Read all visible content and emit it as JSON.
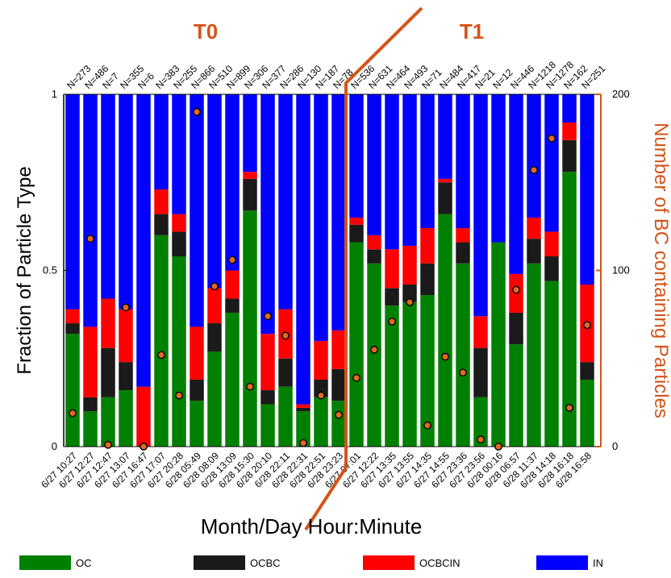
{
  "chart_data": {
    "type": "bar",
    "stacked": true,
    "categories": [
      "6/27 10:27",
      "6/27 12:27",
      "6/27 12:47",
      "6/27 13:07",
      "6/27 16:47",
      "6/27 17:07",
      "6/27 20:28",
      "6/28 05:49",
      "6/28 08:09",
      "6/28 13:09",
      "6/28 15:30",
      "6/28 20:10",
      "6/28 22:11",
      "6/28 22:31",
      "6/28 22:51",
      "6/28 23:23",
      "6/27 07:01",
      "6/27 12:22",
      "6/27 13:35",
      "6/27 13:55",
      "6/27 14:35",
      "6/27 14:55",
      "6/27 23:36",
      "6/27 23:56",
      "6/28 00:16",
      "6/28 06:57",
      "6/28 11:37",
      "6/28 14:18",
      "6/28 16:18",
      "6/28 16:58"
    ],
    "n_labels": [
      "N=273",
      "N=486",
      "N=7",
      "N=355",
      "N=6",
      "N=383",
      "N=255",
      "N=866",
      "N=510",
      "N=899",
      "N=306",
      "N=377",
      "N=286",
      "N=130",
      "N=187",
      "N=78",
      "N=536",
      "N=631",
      "N=464",
      "N=493",
      "N=71",
      "N=484",
      "N=417",
      "N=21",
      "N=12",
      "N=446",
      "N=1218",
      "N=1278",
      "N=162",
      "N=251"
    ],
    "series": [
      {
        "name": "OC",
        "color": "#008000",
        "values": [
          0.32,
          0.1,
          0.14,
          0.16,
          0.0,
          0.6,
          0.54,
          0.13,
          0.27,
          0.38,
          0.67,
          0.12,
          0.17,
          0.1,
          0.14,
          0.13,
          0.58,
          0.52,
          0.4,
          0.41,
          0.43,
          0.66,
          0.52,
          0.14,
          0.58,
          0.29,
          0.52,
          0.47,
          0.78,
          0.19
        ]
      },
      {
        "name": "OCBC",
        "color": "#1a1a1a",
        "values": [
          0.03,
          0.04,
          0.14,
          0.08,
          0.0,
          0.06,
          0.07,
          0.06,
          0.08,
          0.04,
          0.09,
          0.04,
          0.08,
          0.01,
          0.05,
          0.09,
          0.05,
          0.04,
          0.05,
          0.05,
          0.09,
          0.09,
          0.06,
          0.14,
          0.0,
          0.09,
          0.07,
          0.07,
          0.09,
          0.05
        ]
      },
      {
        "name": "OCBCIN",
        "color": "#ff0000",
        "values": [
          0.04,
          0.2,
          0.14,
          0.15,
          0.17,
          0.07,
          0.05,
          0.15,
          0.1,
          0.08,
          0.02,
          0.16,
          0.14,
          0.01,
          0.11,
          0.11,
          0.02,
          0.04,
          0.11,
          0.11,
          0.1,
          0.01,
          0.04,
          0.09,
          0.0,
          0.11,
          0.06,
          0.07,
          0.05,
          0.22
        ]
      },
      {
        "name": "IN",
        "color": "#0000ff",
        "values": [
          0.61,
          0.66,
          0.58,
          0.61,
          0.83,
          0.27,
          0.34,
          0.66,
          0.55,
          0.5,
          0.22,
          0.68,
          0.61,
          0.88,
          0.7,
          0.67,
          0.35,
          0.4,
          0.44,
          0.43,
          0.38,
          0.24,
          0.38,
          0.63,
          0.42,
          0.51,
          0.35,
          0.39,
          0.08,
          0.54
        ]
      }
    ],
    "bc_counts": [
      19,
      118,
      1,
      79,
      0,
      52,
      29,
      190,
      91,
      106,
      34,
      74,
      63,
      2,
      29,
      18,
      39,
      55,
      71,
      82,
      12,
      51,
      42,
      4,
      0,
      89,
      157,
      175,
      22,
      69
    ],
    "ylim_left": [
      0,
      1
    ],
    "yticks_left": [
      "0",
      "0.5",
      "1"
    ],
    "ylim_right": [
      0,
      200
    ],
    "yticks_right": [
      "0",
      "100",
      "200"
    ],
    "xlabel": "Month/Day Hour:Minute",
    "ylabel_left": "Fraction of Particle Type",
    "ylabel_right": "Number of BC containing Particles",
    "period_labels": [
      "T0",
      "T1"
    ],
    "period_break_after_index": 15,
    "accent_color": "#d4541a",
    "legend": [
      {
        "label": "OC",
        "color": "#008000"
      },
      {
        "label": "OCBC",
        "color": "#1a1a1a"
      },
      {
        "label": "OCBCIN",
        "color": "#ff0000"
      },
      {
        "label": "IN",
        "color": "#0000ff"
      }
    ],
    "legend_position": "bottom"
  }
}
